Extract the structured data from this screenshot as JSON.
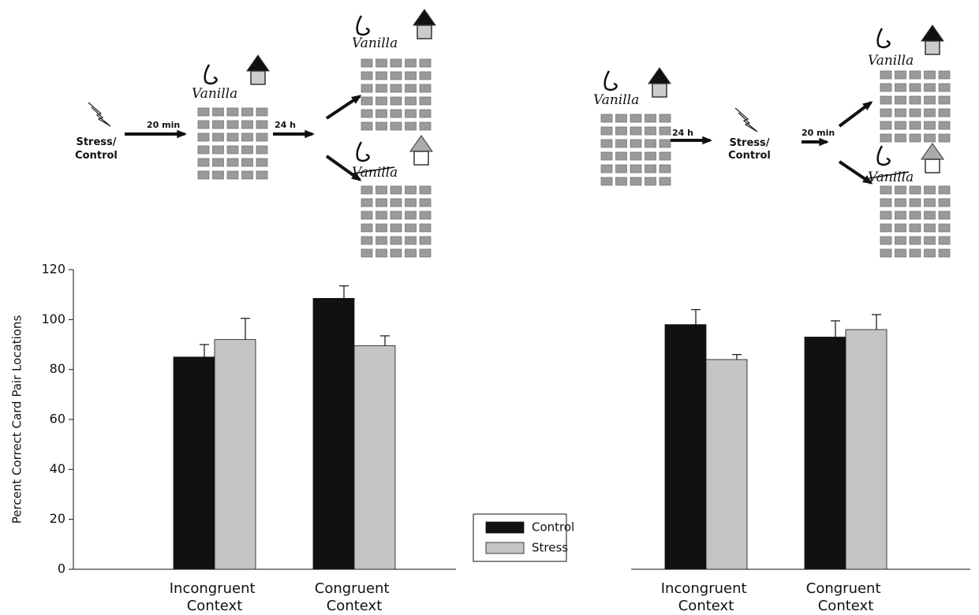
{
  "chart_data": [
    {
      "type": "bar",
      "ylabel": "Percent Correct Card Pair Locations",
      "categories": [
        "Incongruent Context",
        "Congruent Context"
      ],
      "series": [
        {
          "name": "Control",
          "color": "#111111",
          "values": [
            85,
            108.5
          ],
          "errors": [
            5,
            5
          ]
        },
        {
          "name": "Stress",
          "color": "#c4c4c4",
          "values": [
            92,
            89.5
          ],
          "errors": [
            8.5,
            4
          ]
        }
      ],
      "ylim": [
        0,
        120
      ],
      "yticks": [
        0,
        20,
        40,
        60,
        80,
        100,
        120
      ],
      "legend": "bottom center"
    },
    {
      "type": "bar",
      "categories": [
        "Incongruent Context",
        "Congruent Context"
      ],
      "series": [
        {
          "name": "Control",
          "color": "#111111",
          "values": [
            98,
            93
          ],
          "errors": [
            6,
            6.5
          ]
        },
        {
          "name": "Stress",
          "color": "#c4c4c4",
          "values": [
            84,
            96
          ],
          "errors": [
            2,
            6
          ]
        }
      ],
      "ylim": [
        0,
        120
      ]
    }
  ],
  "diagrams": [
    {
      "labels": [
        "Stress/",
        "Control",
        "20 min",
        "24 h",
        "Vanilla",
        "Vanilla",
        "Vanilla"
      ]
    },
    {
      "labels": [
        "Vanilla",
        "24 h",
        "Stress/",
        "Control",
        "20 min",
        "Vanilla",
        "Vanilla"
      ]
    }
  ]
}
